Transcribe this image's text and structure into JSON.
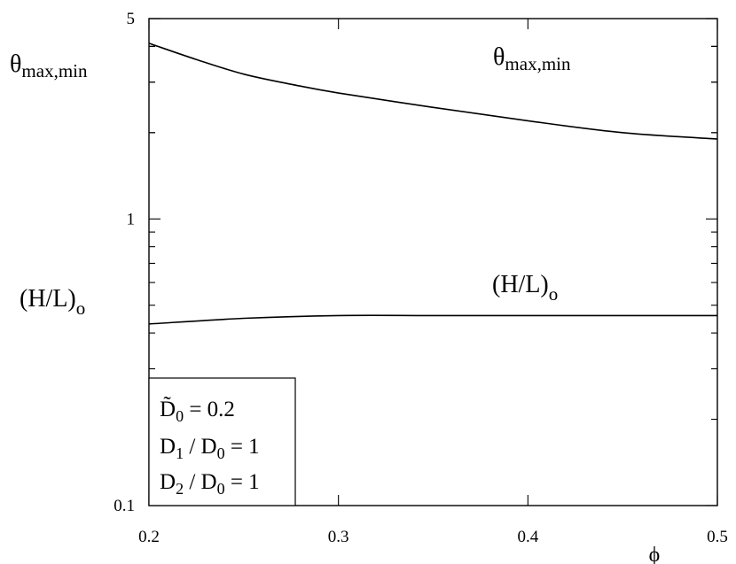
{
  "chart_data": {
    "type": "line",
    "title": "",
    "xlabel": "ϕ",
    "ylabel": "",
    "xscale": "linear",
    "yscale": "log",
    "xlim": [
      0.2,
      0.5
    ],
    "ylim": [
      0.1,
      5
    ],
    "grid": false,
    "x_ticks": [
      0.2,
      0.3,
      0.4,
      0.5
    ],
    "x_tick_labels": [
      "0.2",
      "0.3",
      "0.4",
      "0.5"
    ],
    "y_tick_labels": [
      {
        "value": 5,
        "label": "5"
      },
      {
        "value": 1,
        "label": "1"
      },
      {
        "value": 0.1,
        "label": "0.1"
      }
    ],
    "series": [
      {
        "name": "θmax,min",
        "x": [
          0.2,
          0.225,
          0.25,
          0.275,
          0.3,
          0.35,
          0.4,
          0.45,
          0.5
        ],
        "y": [
          4.1,
          3.6,
          3.2,
          2.95,
          2.75,
          2.45,
          2.2,
          2.0,
          1.9
        ]
      },
      {
        "name": "(H/L)o",
        "x": [
          0.2,
          0.25,
          0.3,
          0.35,
          0.4,
          0.45,
          0.5
        ],
        "y": [
          0.43,
          0.45,
          0.46,
          0.46,
          0.46,
          0.46,
          0.46
        ]
      }
    ],
    "annotations": {
      "left_top": {
        "base": "θ",
        "sub": "max,min"
      },
      "inside_top": {
        "base": "θ",
        "sub": "max,min"
      },
      "left_mid": {
        "base": "(H/L)",
        "sub": "o"
      },
      "inside_mid": {
        "base": "(H/L)",
        "sub": "o"
      }
    },
    "legend_box": {
      "position": "bottom-left",
      "lines": [
        {
          "base": "D̃",
          "sub": "0",
          "rest": " = 0.2"
        },
        {
          "base": "D",
          "sub": "1",
          "mid": " / D",
          "sub2": "0",
          "rest": " = 1"
        },
        {
          "base": "D",
          "sub": "2",
          "mid": " / D",
          "sub2": "0",
          "rest": " = 1"
        }
      ]
    }
  }
}
